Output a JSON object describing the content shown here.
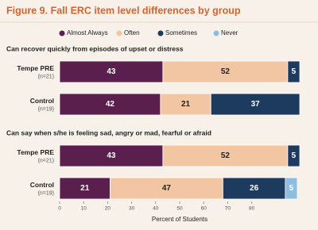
{
  "chart_data": {
    "type": "bar",
    "orientation": "horizontal",
    "stacked": true,
    "title": "Figure 9. Fall ERC item level differences by group",
    "xlabel": "Percent of Students",
    "xlim": [
      0,
      100
    ],
    "xticks": [
      0,
      10,
      20,
      30,
      40,
      50,
      60,
      70,
      80
    ],
    "series": [
      {
        "name": "Almost Always",
        "color": "#5b1f4d"
      },
      {
        "name": "Often",
        "color": "#f2c6a3"
      },
      {
        "name": "Sometimes",
        "color": "#1d3a5f"
      },
      {
        "name": "Never",
        "color": "#8fbde0"
      }
    ],
    "panels": [
      {
        "title": "Can recover quickly from episodes of upset or distress",
        "categories": [
          "Tempe PRE",
          "Control"
        ],
        "notes": [
          "(n=21)",
          "(n=19)"
        ],
        "values": [
          [
            43,
            42
          ],
          [
            52,
            21
          ],
          [
            5,
            37
          ],
          [
            null,
            null
          ]
        ]
      },
      {
        "title": "Can say when s/he is feeling sad, angry or mad, fearful or afraid",
        "categories": [
          "Tempe PRE",
          "Control"
        ],
        "notes": [
          "(n=21)",
          "(n=19)"
        ],
        "values": [
          [
            43,
            21
          ],
          [
            52,
            47
          ],
          [
            5,
            26
          ],
          [
            null,
            5
          ]
        ]
      }
    ]
  }
}
